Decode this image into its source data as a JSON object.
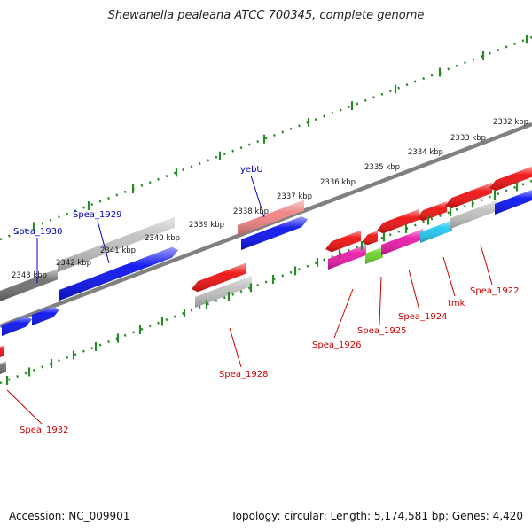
{
  "title": "Shewanella pealeana ATCC 700345, complete genome",
  "footer": {
    "accession": "Accession: NC_009901",
    "summary": "Topology: circular; Length: 5,174,581 bp; Genes: 4,420"
  },
  "ruler_ticks": [
    "2332 kbp",
    "2333 kbp",
    "2334 kbp",
    "2335 kbp",
    "2336 kbp",
    "2337 kbp",
    "2338 kbp",
    "2339 kbp",
    "2340 kbp",
    "2341 kbp",
    "2342 kbp",
    "2343 kbp"
  ],
  "gene_labels": [
    "Spea_1930",
    "Spea_1929",
    "yebU",
    "Spea_1922",
    "tmk",
    "Spea_1924",
    "Spea_1925",
    "Spea_1926",
    "Spea_1928",
    "Spea_1932"
  ],
  "colors": {
    "background": "#ffffff",
    "backbone": "#808080",
    "tick": "#2a8a2a",
    "forward_label": "#0000c8",
    "reverse_label": "#cc0000",
    "gene_red": "#ee1111",
    "gene_blue": "#0a12ee",
    "gene_gray": "#c0c0c0",
    "gene_darkgray": "#707070",
    "gene_pink": "#ee8282",
    "gene_magenta": "#e81aa8",
    "gene_cyan": "#22c8f0",
    "gene_green": "#6ed12b",
    "gene_steel": "#4a7ab0"
  }
}
